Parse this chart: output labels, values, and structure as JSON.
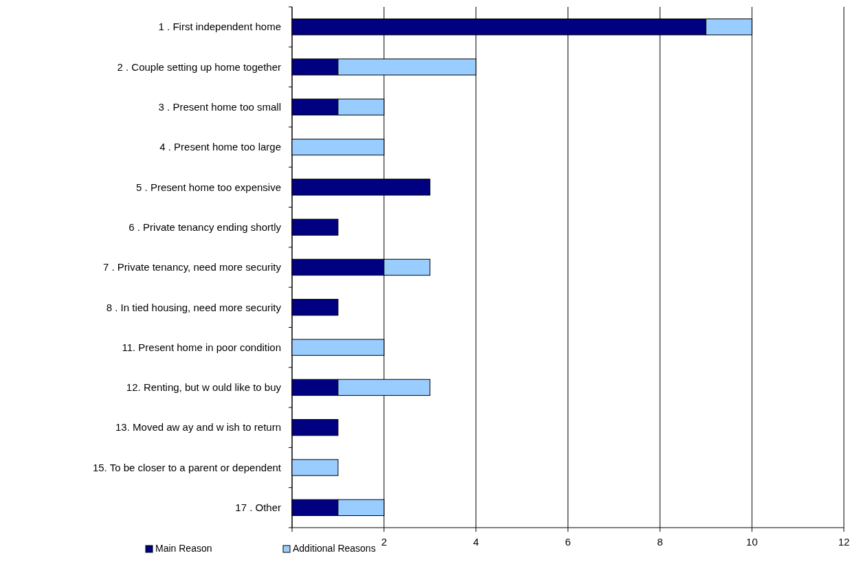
{
  "chart_data": {
    "type": "bar",
    "orientation": "horizontal",
    "stacked": true,
    "categories": [
      "1 . First independent home",
      "2 . Couple setting up home together",
      "3 . Present home too small",
      "4 . Present home too large",
      "5 . Present home too expensive",
      "6 . Private tenancy ending shortly",
      "7 . Private tenancy, need more security",
      "8 . In tied housing, need more security",
      "11. Present home in poor condition",
      "12. Renting, but w ould like to buy",
      "13. Moved aw ay and w ish to return",
      "15. To be closer to a parent or dependent",
      "17 . Other"
    ],
    "series": [
      {
        "name": "Main Reason",
        "color": "#000080",
        "values": [
          9,
          1,
          1,
          0,
          3,
          1,
          2,
          1,
          0,
          1,
          1,
          0,
          1
        ]
      },
      {
        "name": "Additional Reasons",
        "color": "#99ccff",
        "values": [
          1,
          3,
          1,
          2,
          0,
          0,
          1,
          0,
          2,
          2,
          0,
          1,
          1
        ]
      }
    ],
    "xlim": [
      0,
      12
    ],
    "xticks": [
      {
        "value": 0,
        "label": null
      },
      2,
      4,
      6,
      8,
      10,
      12
    ],
    "grid": "x",
    "legend": "bottom left"
  }
}
